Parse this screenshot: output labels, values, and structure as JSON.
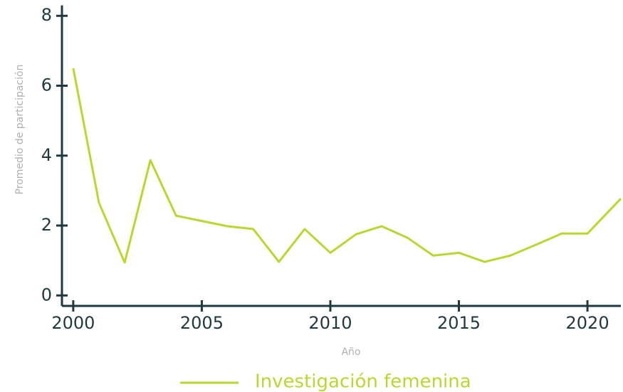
{
  "chart_data": {
    "type": "line",
    "x_label": "Año",
    "y_label": "Promedio de participación",
    "x": [
      2000,
      2001,
      2002,
      2003,
      2004,
      2005,
      2006,
      2007,
      2008,
      2009,
      2010,
      2011,
      2012,
      2013,
      2014,
      2015,
      2016,
      2017,
      2018,
      2019,
      2020,
      2021.3
    ],
    "series": [
      {
        "name": "Investigación femenina",
        "color": "#bcd630",
        "values": [
          6.5,
          2.65,
          0.94,
          3.87,
          2.28,
          2.13,
          1.98,
          1.9,
          0.96,
          1.9,
          1.22,
          1.75,
          1.98,
          1.65,
          1.14,
          1.22,
          0.96,
          1.14,
          1.45,
          1.77,
          1.77,
          2.77
        ]
      }
    ],
    "xlim": [
      1999.56,
      2021.3
    ],
    "ylim": [
      -0.3,
      8.3
    ],
    "xticks": [
      2000,
      2005,
      2010,
      2015,
      2020
    ],
    "yticks": [
      0,
      2,
      4,
      6,
      8
    ],
    "grid": false,
    "legend": "bottom"
  }
}
